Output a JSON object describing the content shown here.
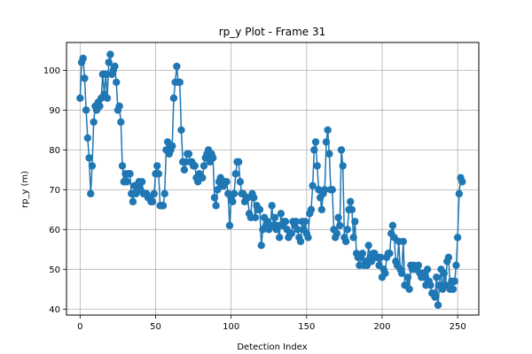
{
  "chart_data": {
    "type": "line",
    "title": "rp_y Plot - Frame 31",
    "xlabel": "Detection Index",
    "ylabel": "rp_y (m)",
    "xlim": [
      -9,
      264
    ],
    "ylim": [
      38.5,
      107
    ],
    "x_ticks": [
      0,
      50,
      100,
      150,
      200,
      250
    ],
    "y_ticks": [
      40,
      50,
      60,
      70,
      80,
      90,
      100
    ],
    "grid": true,
    "marker": "circle",
    "colors": {
      "series": "#1f77b4",
      "grid": "#b0b0b0",
      "axis": "#000000"
    },
    "series": [
      {
        "x_start": 0,
        "x_step": 1,
        "values": [
          93,
          102,
          103,
          98,
          90,
          83,
          78,
          69,
          76,
          87,
          91,
          90,
          92,
          91,
          93,
          99,
          94,
          99,
          93,
          102,
          104,
          99,
          100,
          101,
          97,
          90,
          91,
          87,
          76,
          72,
          74,
          72,
          74,
          74,
          69,
          67,
          71,
          69,
          71,
          72,
          70,
          72,
          69,
          69,
          69,
          68,
          68,
          67,
          67,
          69,
          74,
          76,
          74,
          66,
          66,
          66,
          69,
          80,
          82,
          79,
          80,
          81,
          93,
          97,
          101,
          97,
          97,
          85,
          77,
          75,
          77,
          79,
          79,
          77,
          77,
          76,
          76,
          73,
          72,
          74,
          73,
          73,
          76,
          78,
          79,
          80,
          77,
          79,
          78,
          68,
          66,
          70,
          72,
          73,
          71,
          71,
          72,
          72,
          69,
          61,
          68,
          67,
          69,
          74,
          77,
          77,
          72,
          69,
          69,
          67,
          68,
          68,
          64,
          63,
          69,
          68,
          63,
          66,
          65,
          65,
          56,
          60,
          63,
          61,
          62,
          60,
          61,
          66,
          61,
          63,
          60,
          61,
          58,
          64,
          61,
          62,
          62,
          60,
          58,
          59,
          59,
          62,
          61,
          62,
          60,
          58,
          57,
          62,
          60,
          62,
          59,
          58,
          64,
          65,
          71,
          80,
          82,
          76,
          70,
          68,
          65,
          69,
          70,
          82,
          85,
          79,
          70,
          70,
          60,
          58,
          59,
          63,
          61,
          80,
          76,
          58,
          57,
          60,
          65,
          67,
          65,
          58,
          62,
          54,
          53,
          51,
          53,
          54,
          51,
          52,
          51,
          56,
          53,
          52,
          54,
          54,
          53,
          53,
          51,
          53,
          48,
          50,
          49,
          53,
          54,
          54,
          59,
          61,
          58,
          52,
          51,
          57,
          50,
          49,
          57,
          46,
          46,
          48,
          45,
          51,
          50,
          51,
          50,
          50,
          51,
          49,
          48,
          49,
          48,
          46,
          50,
          47,
          46,
          44,
          44,
          43,
          48,
          41,
          46,
          50,
          45,
          49,
          46,
          52,
          53,
          45,
          47,
          45,
          47,
          51,
          58,
          69,
          73,
          72
        ]
      }
    ]
  }
}
